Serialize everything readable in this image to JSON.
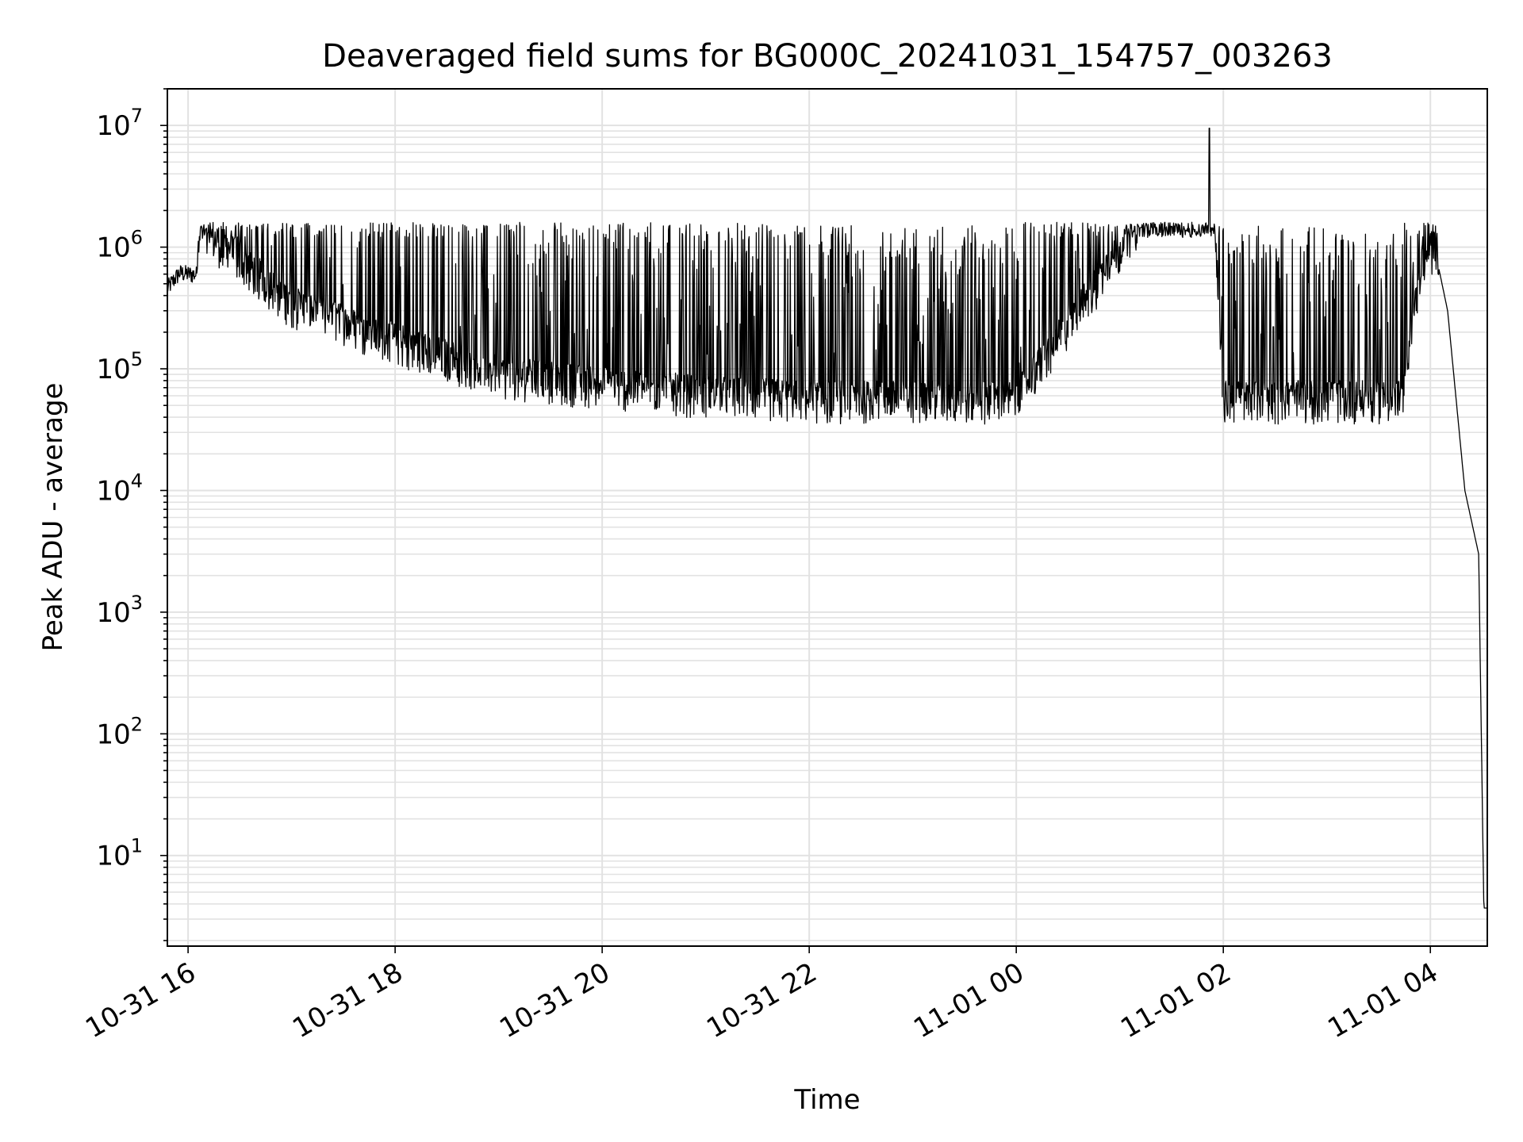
{
  "chart_data": {
    "type": "line",
    "title": "Deaveraged field sums for BG000C_20241031_154757_003263",
    "xlabel": "Time",
    "ylabel": "Peak ADU - average",
    "yscale": "log",
    "xlim": [
      "2024-10-31 15:48",
      "2024-11-01 04:33"
    ],
    "ylim": [
      1.8,
      20000000
    ],
    "grid": true,
    "x_ticks": [
      "10-31 16",
      "10-31 18",
      "10-31 20",
      "10-31 22",
      "11-01 00",
      "11-01 02",
      "11-01 04"
    ],
    "y_ticks": [
      {
        "base": "10",
        "exp": "1",
        "value": 10
      },
      {
        "base": "10",
        "exp": "2",
        "value": 100
      },
      {
        "base": "10",
        "exp": "3",
        "value": 1000
      },
      {
        "base": "10",
        "exp": "4",
        "value": 10000
      },
      {
        "base": "10",
        "exp": "5",
        "value": 100000
      },
      {
        "base": "10",
        "exp": "6",
        "value": 1000000
      },
      {
        "base": "10",
        "exp": "7",
        "value": 10000000
      }
    ],
    "line_color": "#000000",
    "series": [
      {
        "values_note_points": [
          {
            "x": "2024-10-31 15:48",
            "y": 450000
          },
          {
            "x": "2024-10-31 15:55",
            "y": 600000
          },
          {
            "x": "2024-10-31 16:05",
            "y": 580000
          },
          {
            "x": "2024-10-31 16:06",
            "y": 1300000
          },
          {
            "x": "2024-10-31 16:30",
            "y": 700000
          },
          {
            "x": "2024-10-31 17:00",
            "y": 300000
          },
          {
            "x": "2024-10-31 18:00",
            "y": 150000
          },
          {
            "x": "2024-10-31 19:00",
            "y": 80000
          },
          {
            "x": "2024-10-31 20:00",
            "y": 65000
          },
          {
            "x": "2024-10-31 21:00",
            "y": 55000
          },
          {
            "x": "2024-10-31 22:00",
            "y": 50000
          },
          {
            "x": "2024-11-01 00:00",
            "y": 50000
          },
          {
            "x": "2024-11-01 01:52",
            "y": 9500000
          },
          {
            "x": "2024-11-01 02:00",
            "y": 50000
          },
          {
            "x": "2024-11-01 03:44",
            "y": 50000
          },
          {
            "x": "2024-11-01 03:55",
            "y": 700000
          },
          {
            "x": "2024-11-01 04:03",
            "y": 900000
          },
          {
            "x": "2024-11-01 04:10",
            "y": 300000
          },
          {
            "x": "2024-11-01 04:20",
            "y": 10000
          },
          {
            "x": "2024-11-01 04:28",
            "y": 3000
          },
          {
            "x": "2024-11-01 04:31",
            "y": 3.7
          },
          {
            "x": "2024-11-01 04:33",
            "y": 3.7
          }
        ]
      }
    ]
  }
}
